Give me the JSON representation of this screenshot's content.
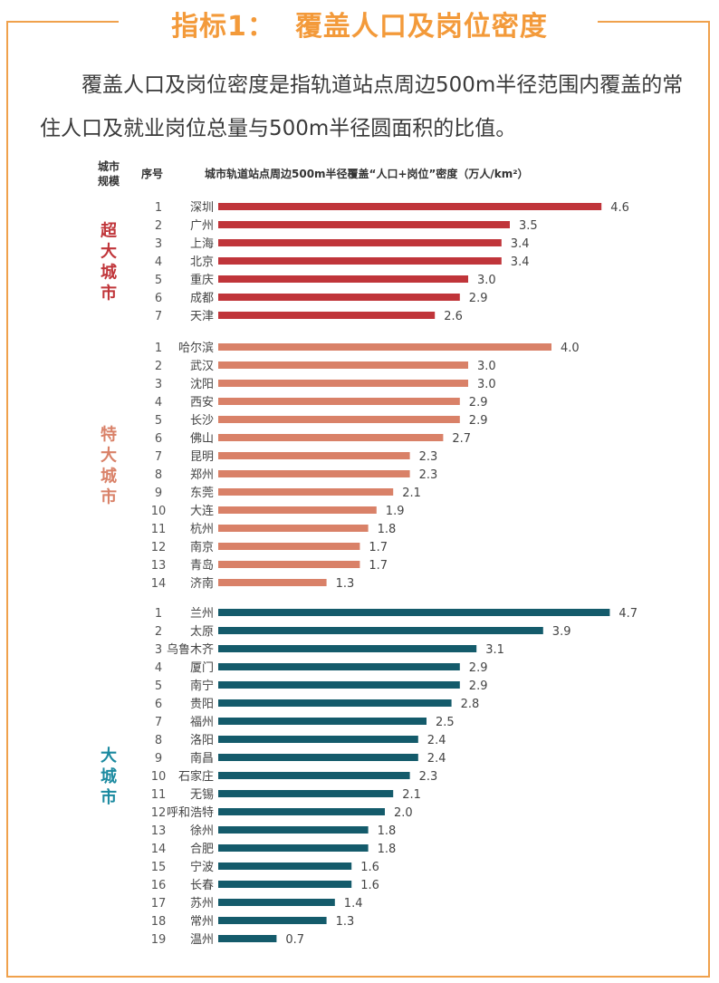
{
  "title": {
    "prefix": "指标1：",
    "main": "覆盖人口及岗位密度"
  },
  "intro": "覆盖人口及岗位密度是指轨道站点周边500m半径范围内覆盖的常住人口及就业岗位总量与500m半径圆面积的比值。",
  "headers": {
    "scale_line1": "城市",
    "scale_line2": "规模",
    "rank": "序号",
    "metric": "城市轨道站点周边500m半径覆盖“人口+岗位”密度（万人/km²）"
  },
  "colors": {
    "frame": "#f0a14c",
    "title": "#f39a3a",
    "super_large": "#c0353a",
    "mega": "#d98168",
    "large": "#145b6b",
    "large_label": "#1b8aa0"
  },
  "chart_data": {
    "type": "bar",
    "orientation": "horizontal",
    "title": "城市轨道站点周边500m半径覆盖“人口+岗位”密度（万人/km²）",
    "xlabel": "",
    "ylabel": "",
    "xlim": [
      0,
      5
    ],
    "grid": false,
    "groups": [
      {
        "name": "超大城市",
        "color_key": "super_large",
        "label_color_key": "super_large",
        "categories": [
          "深圳",
          "广州",
          "上海",
          "北京",
          "重庆",
          "成都",
          "天津"
        ],
        "values": [
          4.6,
          3.5,
          3.4,
          3.4,
          3.0,
          2.9,
          2.6
        ]
      },
      {
        "name": "特大城市",
        "color_key": "mega",
        "label_color_key": "mega",
        "categories": [
          "哈尔滨",
          "武汉",
          "沈阳",
          "西安",
          "长沙",
          "佛山",
          "昆明",
          "郑州",
          "东莞",
          "大连",
          "杭州",
          "南京",
          "青岛",
          "济南"
        ],
        "values": [
          4.0,
          3.0,
          3.0,
          2.9,
          2.9,
          2.7,
          2.3,
          2.3,
          2.1,
          1.9,
          1.8,
          1.7,
          1.7,
          1.3
        ]
      },
      {
        "name": "大城市",
        "color_key": "large",
        "label_color_key": "large_label",
        "categories": [
          "兰州",
          "太原",
          "乌鲁木齐",
          "厦门",
          "南宁",
          "贵阳",
          "福州",
          "洛阳",
          "南昌",
          "石家庄",
          "无锡",
          "呼和浩特",
          "徐州",
          "合肥",
          "宁波",
          "长春",
          "苏州",
          "常州",
          "温州"
        ],
        "values": [
          4.7,
          3.9,
          3.1,
          2.9,
          2.9,
          2.8,
          2.5,
          2.4,
          2.4,
          2.3,
          2.1,
          2.0,
          1.8,
          1.8,
          1.6,
          1.6,
          1.4,
          1.3,
          0.7
        ]
      }
    ]
  }
}
